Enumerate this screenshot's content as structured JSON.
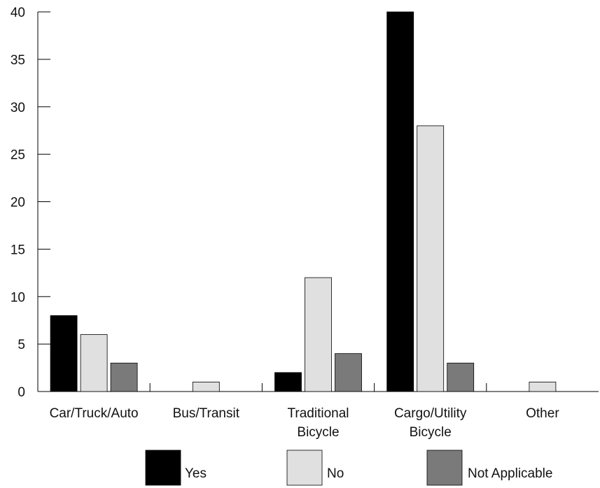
{
  "chart_data": {
    "type": "bar",
    "categories": [
      [
        "Car/Truck/Auto"
      ],
      [
        "Bus/Transit"
      ],
      [
        "Traditional",
        "Bicycle"
      ],
      [
        "Cargo/Utility",
        "Bicycle"
      ],
      [
        "Other"
      ]
    ],
    "series": [
      {
        "name": "Yes",
        "color": "#000000",
        "values": [
          8,
          0,
          2,
          40,
          0
        ]
      },
      {
        "name": "No",
        "color": "#e0e0e0",
        "values": [
          6,
          1,
          12,
          28,
          1
        ]
      },
      {
        "name": "Not Applicable",
        "color": "#7a7a7a",
        "values": [
          3,
          0,
          4,
          3,
          0
        ]
      }
    ],
    "ylim": [
      0,
      40
    ],
    "yticks": [
      0,
      5,
      10,
      15,
      20,
      25,
      30,
      35,
      40
    ],
    "grid": false,
    "legend_position": "bottom"
  }
}
